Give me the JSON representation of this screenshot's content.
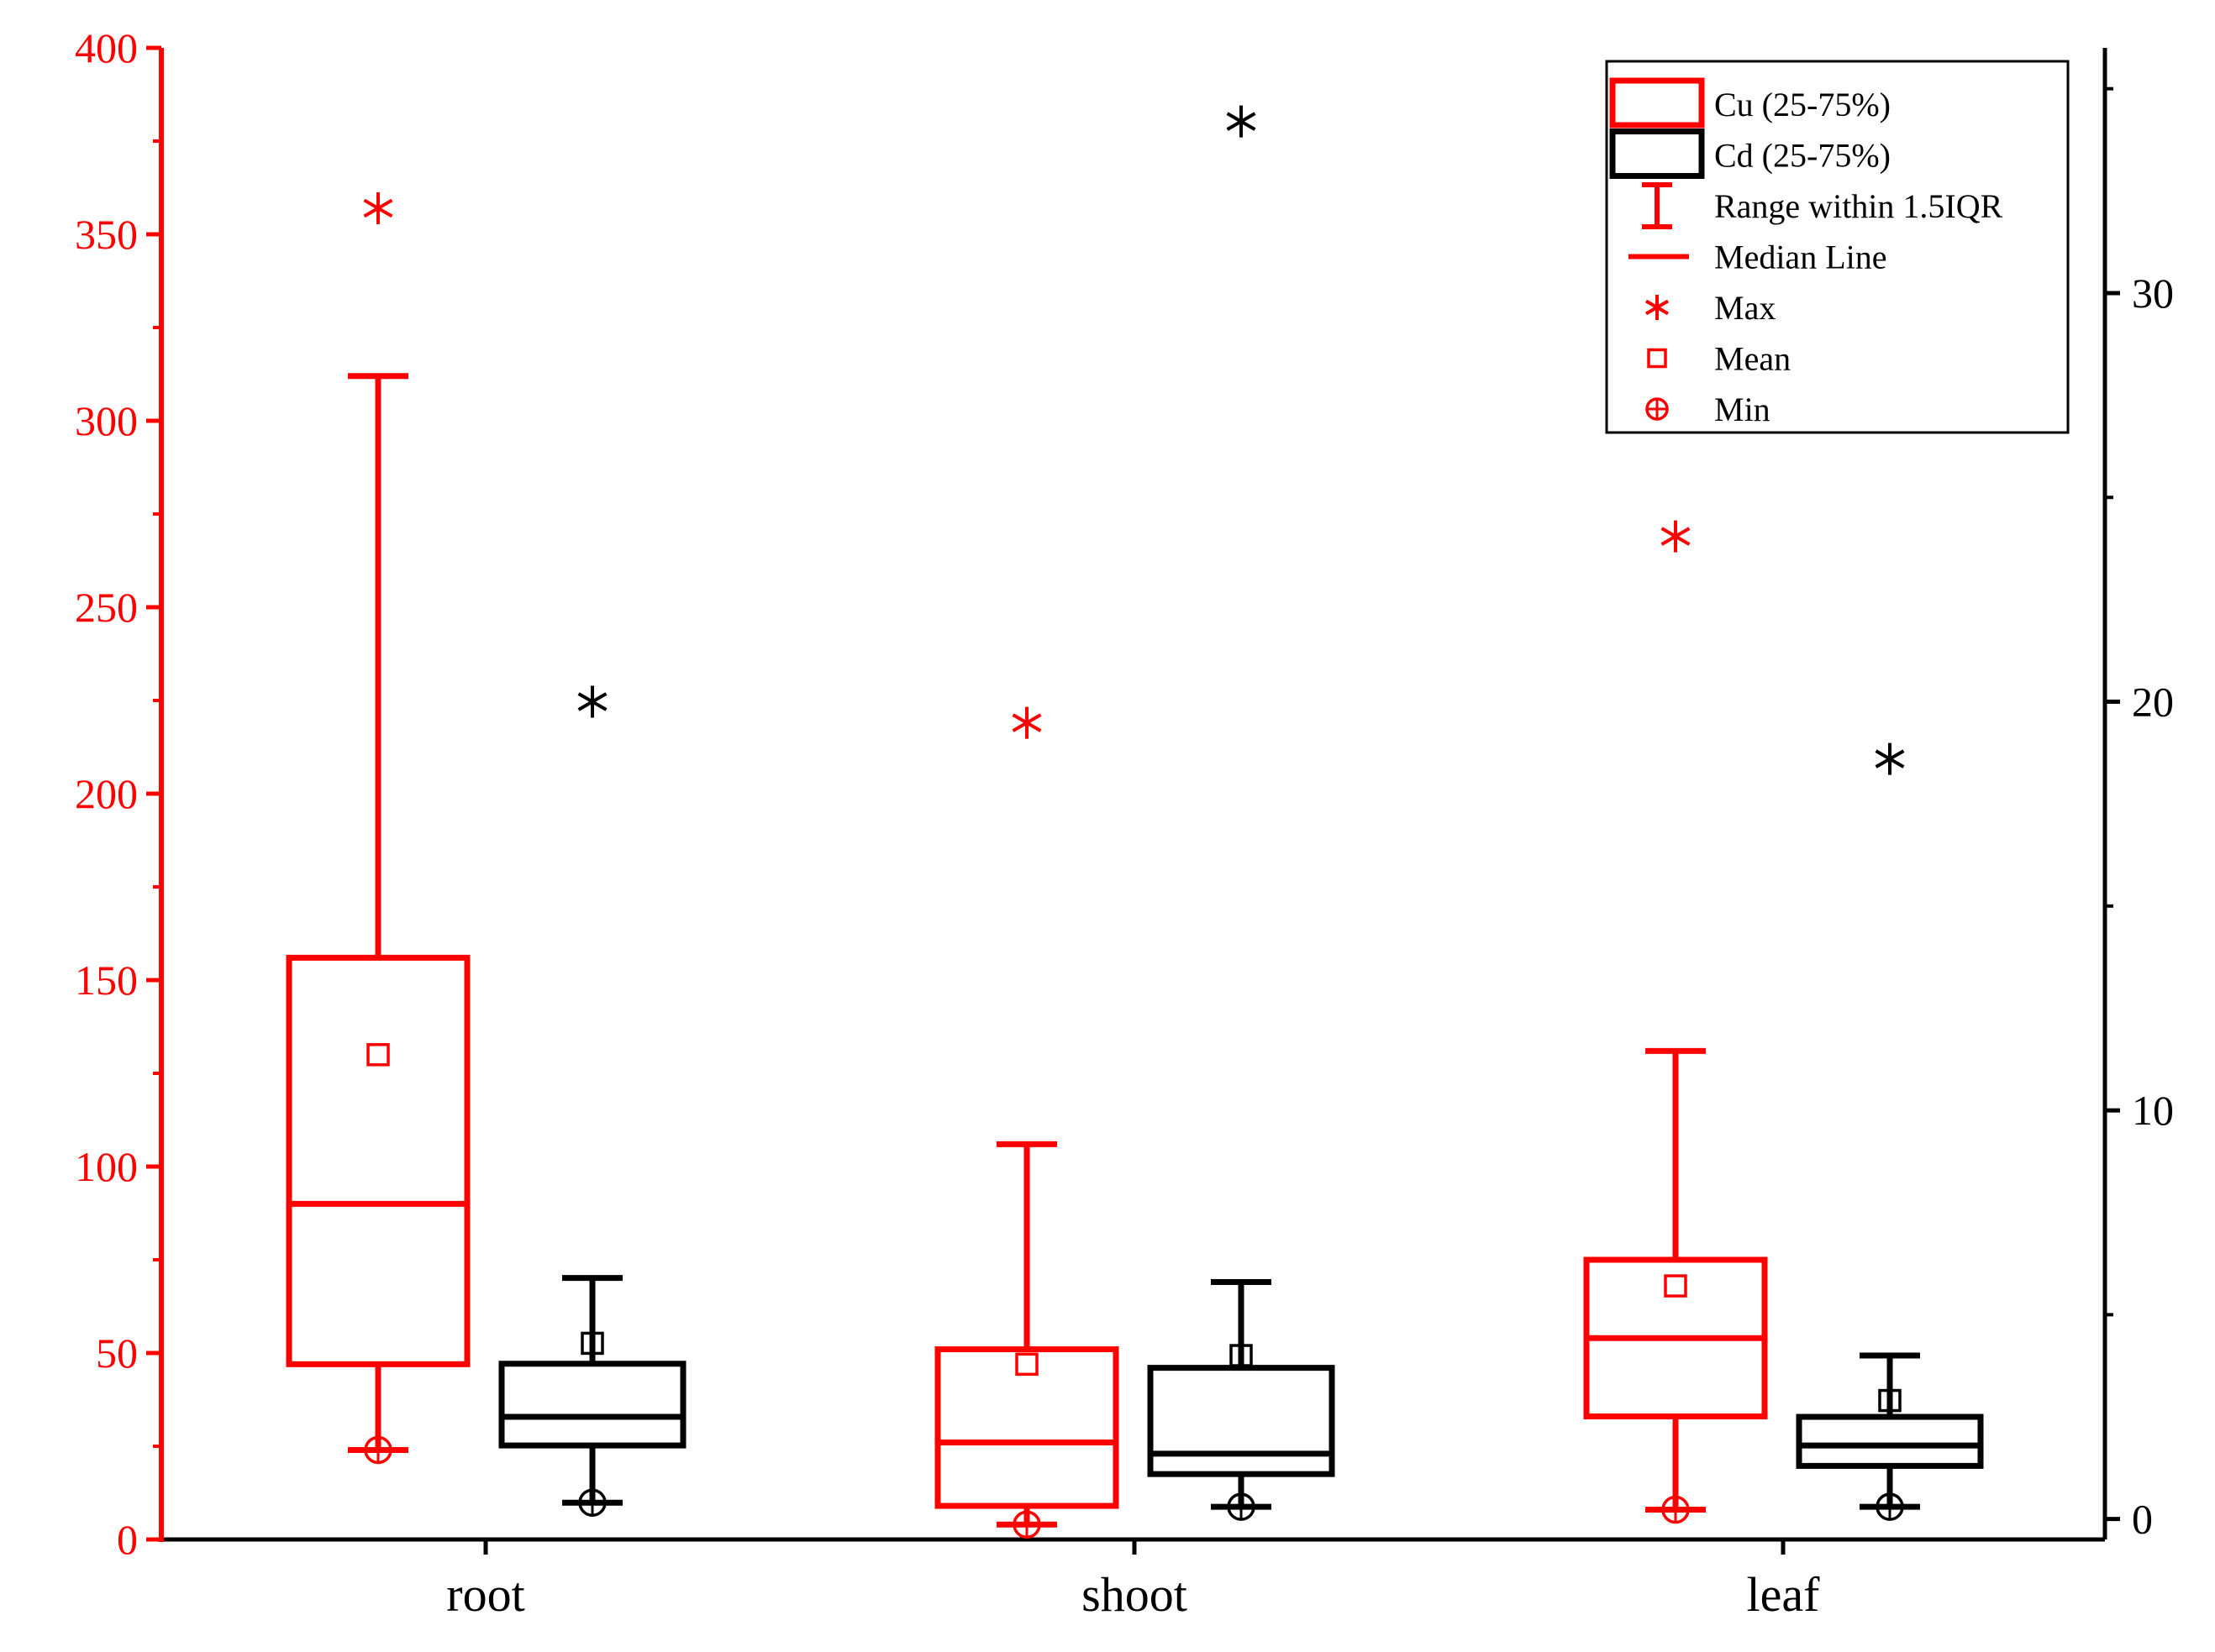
{
  "chart_data": {
    "type": "box",
    "title": "",
    "xlabel": "",
    "ylabel": "",
    "categories": [
      "root",
      "shoot",
      "leaf"
    ],
    "left_axis": {
      "color": "#ff0000",
      "ylim": [
        0,
        400
      ],
      "ticks": [
        0,
        50,
        100,
        150,
        200,
        250,
        300,
        350,
        400
      ]
    },
    "right_axis": {
      "color": "#000000",
      "ylim": [
        -0.5,
        36.0
      ],
      "ticks": [
        0,
        10,
        20,
        30
      ]
    },
    "series": [
      {
        "name": "Cu",
        "axis": "left",
        "color": "#ff0000",
        "boxes": [
          {
            "category": "root",
            "q1": 47,
            "median": 90,
            "q3": 156,
            "whisker_low": 24,
            "whisker_high": 312,
            "mean": 130,
            "min": 24,
            "max": 357
          },
          {
            "category": "shoot",
            "q1": 9,
            "median": 26,
            "q3": 51,
            "whisker_low": 4,
            "whisker_high": 106,
            "mean": 47,
            "min": 4,
            "max": 219
          },
          {
            "category": "leaf",
            "q1": 33,
            "median": 54,
            "q3": 75,
            "whisker_low": 8,
            "whisker_high": 131,
            "mean": 68,
            "min": 8,
            "max": 269
          }
        ]
      },
      {
        "name": "Cd",
        "axis": "right",
        "color": "#000000",
        "boxes": [
          {
            "category": "root",
            "q1": 1.8,
            "median": 2.5,
            "q3": 3.8,
            "whisker_low": 0.4,
            "whisker_high": 5.9,
            "mean": 4.3,
            "min": 0.4,
            "max": 20.0
          },
          {
            "category": "shoot",
            "q1": 1.1,
            "median": 1.6,
            "q3": 3.7,
            "whisker_low": 0.3,
            "whisker_high": 5.8,
            "mean": 4.0,
            "min": 0.3,
            "max": 34.2
          },
          {
            "category": "leaf",
            "q1": 1.3,
            "median": 1.8,
            "q3": 2.5,
            "whisker_low": 0.3,
            "whisker_high": 4.0,
            "mean": 2.9,
            "min": 0.3,
            "max": 18.6
          }
        ]
      }
    ],
    "legend": {
      "position": "top-right",
      "entries": [
        "Cu (25-75%)",
        "Cd (25-75%)",
        "Range within 1.5IQR",
        "Median Line",
        "Max",
        "Mean",
        "Min"
      ]
    }
  }
}
